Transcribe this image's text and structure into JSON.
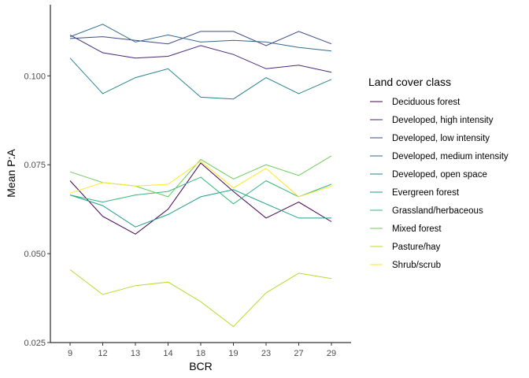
{
  "chart_data": {
    "type": "line",
    "xlabel": "BCR",
    "ylabel": "Mean P:A",
    "x": [
      "9",
      "12",
      "13",
      "14",
      "18",
      "19",
      "23",
      "27",
      "29"
    ],
    "ylim": [
      0.025,
      0.12
    ],
    "yticks": [
      0.025,
      0.05,
      0.075,
      0.1
    ],
    "ytick_labels": [
      "0.025",
      "0.050",
      "0.075",
      "0.100"
    ],
    "grid": false,
    "legend": {
      "title": "Land cover class",
      "placement": "right"
    },
    "series": [
      {
        "name": "Deciduous forest",
        "color": "#440154",
        "values": [
          0.0705,
          0.0605,
          0.0555,
          0.0625,
          0.0755,
          0.0675,
          0.06,
          0.0645,
          0.059
        ]
      },
      {
        "name": "Developed, high intensity",
        "color": "#482878",
        "values": [
          0.1115,
          0.1065,
          0.105,
          0.1055,
          0.1085,
          0.106,
          0.102,
          0.103,
          0.101
        ]
      },
      {
        "name": "Developed, low intensity",
        "color": "#3E4A89",
        "values": [
          0.1105,
          0.111,
          0.11,
          0.109,
          0.1125,
          0.1125,
          0.1085,
          0.1125,
          0.109
        ]
      },
      {
        "name": "Developed, medium intensity",
        "color": "#31688E",
        "values": [
          0.111,
          0.1145,
          0.1095,
          0.1115,
          0.1095,
          0.11,
          0.1095,
          0.108,
          0.107
        ]
      },
      {
        "name": "Developed, open space",
        "color": "#26828E",
        "values": [
          0.105,
          0.095,
          0.0995,
          0.102,
          0.094,
          0.0935,
          0.0995,
          0.095,
          0.099
        ]
      },
      {
        "name": "Evergreen forest",
        "color": "#1F9E89",
        "values": [
          0.0665,
          0.0635,
          0.0575,
          0.061,
          0.066,
          0.068,
          0.064,
          0.06,
          0.06
        ]
      },
      {
        "name": "Grassland/herbaceous",
        "color": "#35B779",
        "values": [
          0.0665,
          0.0645,
          0.0665,
          0.0675,
          0.0715,
          0.064,
          0.0705,
          0.066,
          0.0695
        ]
      },
      {
        "name": "Mixed forest",
        "color": "#6DCD59",
        "values": [
          0.073,
          0.07,
          0.069,
          0.066,
          0.0765,
          0.071,
          0.075,
          0.072,
          0.0775
        ]
      },
      {
        "name": "Pasture/hay",
        "color": "#B4DE2C",
        "values": [
          0.0455,
          0.0385,
          0.041,
          0.042,
          0.0365,
          0.0295,
          0.039,
          0.0445,
          0.043
        ]
      },
      {
        "name": "Shrub/scrub",
        "color": "#FDE725",
        "values": [
          0.067,
          0.07,
          0.069,
          0.0695,
          0.076,
          0.0685,
          0.074,
          0.066,
          0.069
        ]
      }
    ]
  }
}
